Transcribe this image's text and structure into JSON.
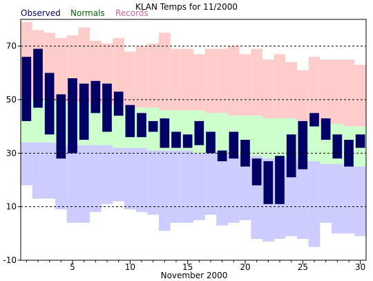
{
  "chart_data": {
    "type": "bar",
    "title": "KLAN Temps for 11/2000",
    "xlabel": "November 2000",
    "ylabel": "",
    "xlim": [
      0.5,
      30.5
    ],
    "ylim": [
      -10,
      80
    ],
    "yticks": [
      -10,
      10,
      30,
      50,
      70
    ],
    "xticks": [
      5,
      10,
      15,
      20,
      25,
      30
    ],
    "grid": "dashed horizontal at y ticks",
    "legend": "top-left",
    "legend_entries": [
      {
        "name": "Observed",
        "color": "#000066"
      },
      {
        "name": "Normals",
        "color": "#006600"
      },
      {
        "name": "Records",
        "color": "#cc6699"
      }
    ],
    "days": [
      1,
      2,
      3,
      4,
      5,
      6,
      7,
      8,
      9,
      10,
      11,
      12,
      13,
      14,
      15,
      16,
      17,
      18,
      19,
      20,
      21,
      22,
      23,
      24,
      25,
      26,
      27,
      28,
      29,
      30
    ],
    "series": [
      {
        "name": "Records",
        "high": [
          79,
          76,
          75,
          73,
          74,
          77,
          72,
          71,
          73,
          68,
          70,
          71,
          75,
          69,
          69,
          67,
          69,
          69,
          70,
          67,
          69,
          65,
          67,
          64,
          61,
          66,
          65,
          65,
          65,
          63
        ],
        "low": [
          18,
          13,
          13,
          9,
          4,
          4,
          8,
          11,
          12,
          9,
          8,
          7,
          1,
          4,
          4,
          5,
          7,
          3,
          4,
          5,
          -2,
          -3,
          -2,
          -1,
          -2,
          -5,
          4,
          0,
          0,
          -1
        ]
      },
      {
        "name": "Normals",
        "high": [
          51,
          50,
          50,
          49,
          49,
          49,
          48,
          48,
          48,
          47,
          47,
          47,
          46,
          46,
          46,
          46,
          45,
          45,
          44,
          44,
          44,
          43,
          43,
          43,
          42,
          42,
          41,
          41,
          40,
          40
        ],
        "low": [
          34,
          34,
          34,
          33,
          33,
          33,
          33,
          33,
          32,
          32,
          32,
          31,
          31,
          31,
          31,
          30,
          30,
          30,
          29,
          29,
          29,
          28,
          28,
          28,
          27,
          27,
          26,
          26,
          25,
          25
        ]
      },
      {
        "name": "Observed",
        "high": [
          66,
          69,
          60,
          52,
          58,
          56,
          57,
          56,
          53,
          48,
          45,
          42,
          43,
          38,
          37,
          42,
          38,
          31,
          38,
          35,
          28,
          27,
          29,
          37,
          42,
          45,
          43,
          37,
          35,
          37
        ],
        "low": [
          42,
          47,
          37,
          28,
          30,
          35,
          45,
          38,
          44,
          36,
          36,
          38,
          32,
          32,
          32,
          33,
          30,
          27,
          28,
          25,
          18,
          11,
          11,
          21,
          24,
          40,
          35,
          28,
          25,
          32
        ]
      }
    ]
  },
  "colors": {
    "observed": "#000066",
    "normals_fill": "#ccffcc",
    "records_high_fill": "#ffcccc",
    "records_low_fill": "#ccccff",
    "grid": "#000000",
    "axis": "#000000"
  }
}
